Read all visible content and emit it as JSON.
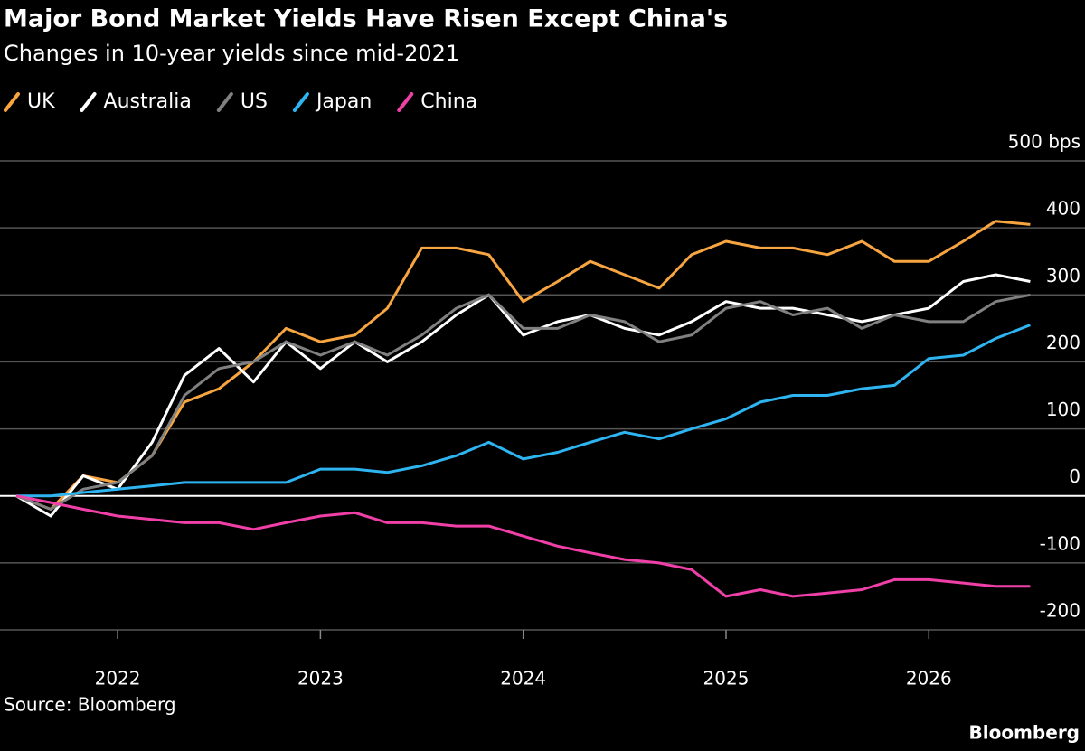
{
  "chart_data": {
    "type": "line",
    "title": "Major Bond Market Yields Have Risen Except China's",
    "subtitle": "Changes in 10-year yields since mid-2021",
    "source": "Source: Bloomberg",
    "brand": "Bloomberg",
    "x": [
      2021.5,
      2021.67,
      2021.83,
      2022,
      2022.17,
      2022.33,
      2022.5,
      2022.67,
      2022.83,
      2023,
      2023.17,
      2023.33,
      2023.5,
      2023.67,
      2023.83,
      2024,
      2024.17,
      2024.33,
      2024.5,
      2024.67,
      2024.83,
      2025,
      2025.17,
      2025.33,
      2025.5,
      2025.67,
      2025.83,
      2026,
      2026.17,
      2026.33,
      2026.5
    ],
    "series": [
      {
        "name": "UK",
        "color": "#f7a540",
        "values": [
          0,
          -20,
          30,
          20,
          60,
          140,
          160,
          200,
          250,
          230,
          240,
          280,
          370,
          370,
          360,
          290,
          320,
          350,
          330,
          310,
          360,
          380,
          370,
          370,
          360,
          380,
          350,
          350,
          380,
          410,
          405
        ]
      },
      {
        "name": "Australia",
        "color": "#ffffff",
        "values": [
          0,
          -30,
          30,
          10,
          80,
          180,
          220,
          170,
          230,
          190,
          230,
          200,
          230,
          270,
          300,
          240,
          260,
          270,
          250,
          240,
          260,
          290,
          280,
          280,
          270,
          260,
          270,
          280,
          320,
          330,
          320
        ]
      },
      {
        "name": "US",
        "color": "#808080",
        "values": [
          0,
          -20,
          10,
          20,
          60,
          150,
          190,
          200,
          230,
          210,
          230,
          210,
          240,
          280,
          300,
          250,
          250,
          270,
          260,
          230,
          240,
          280,
          290,
          270,
          280,
          250,
          270,
          260,
          260,
          290,
          300
        ]
      },
      {
        "name": "Japan",
        "color": "#2eb4f0",
        "values": [
          0,
          0,
          5,
          10,
          15,
          20,
          20,
          20,
          20,
          40,
          40,
          35,
          45,
          60,
          80,
          55,
          65,
          80,
          95,
          85,
          100,
          115,
          140,
          150,
          150,
          160,
          165,
          205,
          210,
          235,
          255
        ]
      },
      {
        "name": "China",
        "color": "#f040a8",
        "values": [
          0,
          -10,
          -20,
          -30,
          -35,
          -40,
          -40,
          -50,
          -40,
          -30,
          -25,
          -40,
          -40,
          -45,
          -45,
          -60,
          -75,
          -85,
          -95,
          -100,
          -110,
          -150,
          -140,
          -150,
          -145,
          -140,
          -125,
          -125,
          -130,
          -135,
          -135
        ]
      }
    ],
    "xlim": [
      2021.42,
      2026.77
    ],
    "xticks": [
      2022,
      2023,
      2024,
      2025,
      2026
    ],
    "ylim": [
      -200,
      500
    ],
    "yticks": [
      -200,
      -100,
      0,
      100,
      200,
      300,
      400,
      {
        "value": 500,
        "label": "500 bps"
      }
    ],
    "grid": true
  }
}
